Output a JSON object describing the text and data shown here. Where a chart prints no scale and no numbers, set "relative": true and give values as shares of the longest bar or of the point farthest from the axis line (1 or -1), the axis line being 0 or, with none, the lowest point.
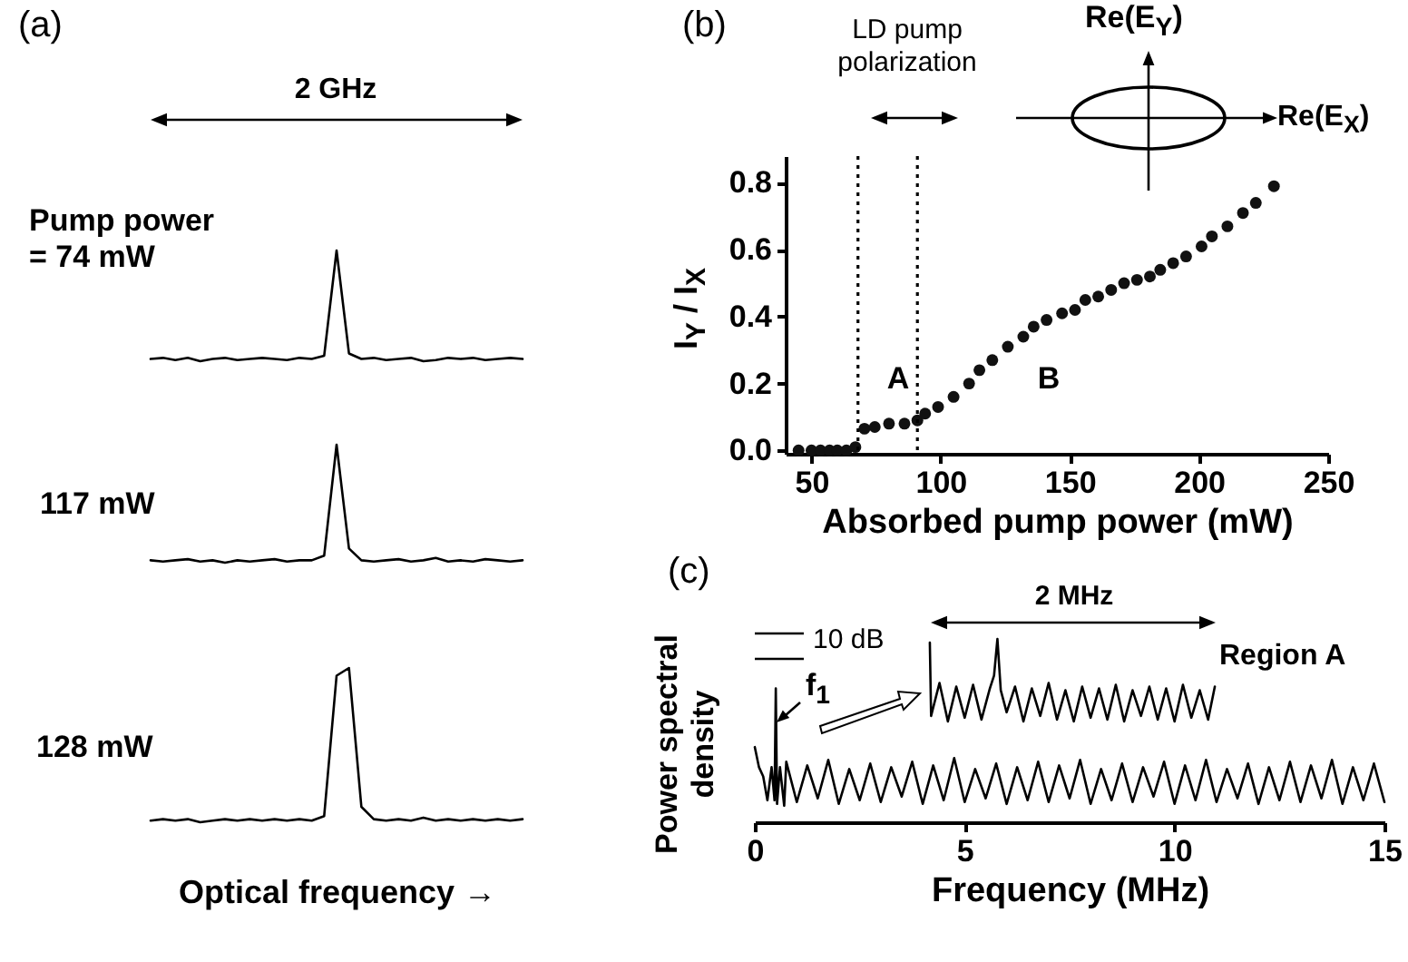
{
  "chart_data": [
    {
      "type": "line",
      "title": "(a)",
      "annotations": [
        "2 GHz"
      ],
      "relative": true,
      "categories": [
        null,
        null,
        null,
        null,
        null,
        null,
        null,
        null,
        null,
        null,
        null,
        null,
        null,
        null,
        null,
        null,
        null,
        null,
        null,
        null,
        null,
        null,
        null,
        null,
        null,
        null,
        null,
        null,
        null,
        null,
        null
      ],
      "series": [
        {
          "name": "Pump power = 74 mW",
          "color": "#000000",
          "values": [
            0.02,
            0.03,
            0.01,
            0.03,
            0,
            0.02,
            0.03,
            0.01,
            0.02,
            0.03,
            0.02,
            0.01,
            0.03,
            0.02,
            0.05,
            1,
            0.07,
            0.02,
            0.03,
            0.01,
            0.02,
            0.03,
            0,
            0.01,
            0.03,
            0.02,
            0.03,
            0.01,
            0.02,
            0.03,
            0.02
          ]
        }
      ]
    },
    {
      "type": "line",
      "relative": true,
      "categories": [
        null,
        null,
        null,
        null,
        null,
        null,
        null,
        null,
        null,
        null,
        null,
        null,
        null,
        null,
        null,
        null,
        null,
        null,
        null,
        null,
        null,
        null,
        null,
        null,
        null,
        null,
        null,
        null,
        null,
        null,
        null
      ],
      "series": [
        {
          "name": "117 mW",
          "color": "#000000",
          "values": [
            0.02,
            0.01,
            0.02,
            0.03,
            0.01,
            0.02,
            0,
            0.02,
            0.01,
            0.02,
            0.03,
            0.01,
            0.02,
            0.02,
            0.06,
            1,
            0.12,
            0.02,
            0.01,
            0.02,
            0.03,
            0.01,
            0.02,
            0.04,
            0.01,
            0.02,
            0.01,
            0.03,
            0.02,
            0.01,
            0.02
          ]
        }
      ]
    },
    {
      "type": "line",
      "xlabel": "Optical frequency →",
      "relative": true,
      "categories": [
        null,
        null,
        null,
        null,
        null,
        null,
        null,
        null,
        null,
        null,
        null,
        null,
        null,
        null,
        null,
        null,
        null,
        null,
        null,
        null,
        null,
        null,
        null,
        null,
        null,
        null,
        null,
        null,
        null,
        null,
        null
      ],
      "series": [
        {
          "name": "128 mW",
          "color": "#000000",
          "values": [
            0.01,
            0.02,
            0.01,
            0.02,
            0,
            0.01,
            0.02,
            0.01,
            0.02,
            0.01,
            0.02,
            0.01,
            0.02,
            0.01,
            0.04,
            0.95,
            1,
            0.1,
            0.02,
            0.01,
            0.02,
            0.01,
            0.03,
            0.01,
            0.02,
            0.01,
            0.02,
            0.01,
            0.02,
            0.01,
            0.02
          ]
        }
      ]
    },
    {
      "type": "scatter",
      "title": "(b)",
      "xlabel": "Absorbed pump power (mW)",
      "ylabel": "I$_{Y}$ / I$_{X}$",
      "marker": "circle",
      "annotations": [
        "LD pump polarization",
        "Re(E$_{Y}$)",
        "Re(E$_{X}$)",
        "A",
        "B"
      ],
      "x": [
        45,
        50,
        53.5,
        57,
        60,
        63.5,
        67,
        70.5,
        74.5,
        80,
        86,
        91,
        94,
        99,
        105,
        111,
        115,
        120,
        126,
        132,
        136,
        141,
        147,
        152,
        156,
        161,
        166,
        171,
        176,
        181,
        185,
        190,
        195,
        201,
        205,
        211,
        217,
        222,
        229
      ],
      "series": [
        {
          "color": "#111111",
          "values": [
            0,
            0,
            0,
            0,
            0,
            0,
            0.01,
            0.065,
            0.07,
            0.08,
            0.08,
            0.09,
            0.11,
            0.13,
            0.16,
            0.2,
            0.24,
            0.27,
            0.31,
            0.34,
            0.37,
            0.39,
            0.41,
            0.42,
            0.45,
            0.46,
            0.48,
            0.5,
            0.51,
            0.52,
            0.54,
            0.56,
            0.58,
            0.61,
            0.64,
            0.67,
            0.71,
            0.74,
            0.79
          ]
        }
      ],
      "xlim": [
        40,
        250
      ],
      "xticks": [
        50,
        100,
        150,
        200,
        250
      ],
      "ylim": [
        -0.01,
        0.88
      ],
      "yticks": [
        {
          "value": 0,
          "label": "0.0"
        },
        0.2,
        0.4,
        0.6,
        0.8
      ],
      "ref_lines": [
        {
          "axis": "x",
          "value": 68,
          "color": "#000000",
          "line_style": "dotted"
        },
        {
          "axis": "x",
          "value": 91,
          "color": "#000000",
          "line_style": "dotted"
        }
      ]
    },
    {
      "type": "line",
      "title": "(c)",
      "xlabel": "Frequency (MHz)",
      "ylabel": "Power spectral density",
      "relative": true,
      "annotations": [
        "10 dB",
        "2 MHz",
        "Region A",
        "f$_{1}$"
      ],
      "xlim": [
        0,
        15
      ],
      "xticks": [
        0,
        5,
        10,
        15
      ],
      "series": [
        {
          "color": "#000000",
          "x": [
            0,
            0.1,
            0.2,
            0.3,
            0.4,
            0.47,
            0.5,
            0.53,
            0.6,
            0.7,
            0.75,
            1,
            1.25,
            1.5,
            1.75,
            2,
            2.25,
            2.5,
            2.75,
            3,
            3.25,
            3.5,
            3.75,
            4,
            4.25,
            4.5,
            4.75,
            5,
            5.25,
            5.5,
            5.75,
            6,
            6.25,
            6.5,
            6.75,
            7,
            7.25,
            7.5,
            7.75,
            8,
            8.25,
            8.5,
            8.75,
            9,
            9.25,
            9.5,
            9.75,
            10,
            10.25,
            10.5,
            10.75,
            11,
            11.25,
            11.5,
            11.75,
            12,
            12.25,
            12.5,
            12.75,
            13,
            13.25,
            13.5,
            13.75,
            14,
            14.25,
            14.5,
            14.75,
            15
          ],
          "values": [
            0.41,
            0.3,
            0.25,
            0.12,
            0.3,
            0.12,
            0.73,
            0.1,
            0.3,
            0.09,
            0.33,
            0.11,
            0.31,
            0.13,
            0.34,
            0.1,
            0.29,
            0.12,
            0.32,
            0.11,
            0.3,
            0.14,
            0.33,
            0.1,
            0.31,
            0.12,
            0.35,
            0.11,
            0.29,
            0.13,
            0.32,
            0.1,
            0.3,
            0.12,
            0.33,
            0.11,
            0.31,
            0.13,
            0.34,
            0.1,
            0.29,
            0.12,
            0.32,
            0.11,
            0.3,
            0.14,
            0.33,
            0.1,
            0.31,
            0.12,
            0.34,
            0.11,
            0.29,
            0.13,
            0.32,
            0.1,
            0.3,
            0.12,
            0.33,
            0.11,
            0.31,
            0.13,
            0.34,
            0.1,
            0.3,
            0.12,
            0.32,
            0.11
          ]
        },
        {
          "color": "#000000",
          "x": [
            4.17,
            4.2,
            4.4,
            4.6,
            4.8,
            5.0,
            5.2,
            5.4,
            5.6,
            5.7,
            5.78,
            5.86,
            6.0,
            6.2,
            6.4,
            6.6,
            6.8,
            7.0,
            7.2,
            7.4,
            7.6,
            7.8,
            8.0,
            8.2,
            8.4,
            8.6,
            8.8,
            9.0,
            9.2,
            9.4,
            9.6,
            9.8,
            10.0,
            10.2,
            10.4,
            10.6,
            10.8,
            10.96
          ],
          "values": [
            0.98,
            0.58,
            0.76,
            0.55,
            0.74,
            0.57,
            0.75,
            0.56,
            0.73,
            0.8,
            1,
            0.72,
            0.6,
            0.74,
            0.55,
            0.73,
            0.58,
            0.76,
            0.56,
            0.72,
            0.55,
            0.74,
            0.57,
            0.73,
            0.56,
            0.75,
            0.55,
            0.72,
            0.58,
            0.74,
            0.56,
            0.73,
            0.55,
            0.75,
            0.57,
            0.72,
            0.56,
            0.74
          ]
        }
      ]
    }
  ]
}
